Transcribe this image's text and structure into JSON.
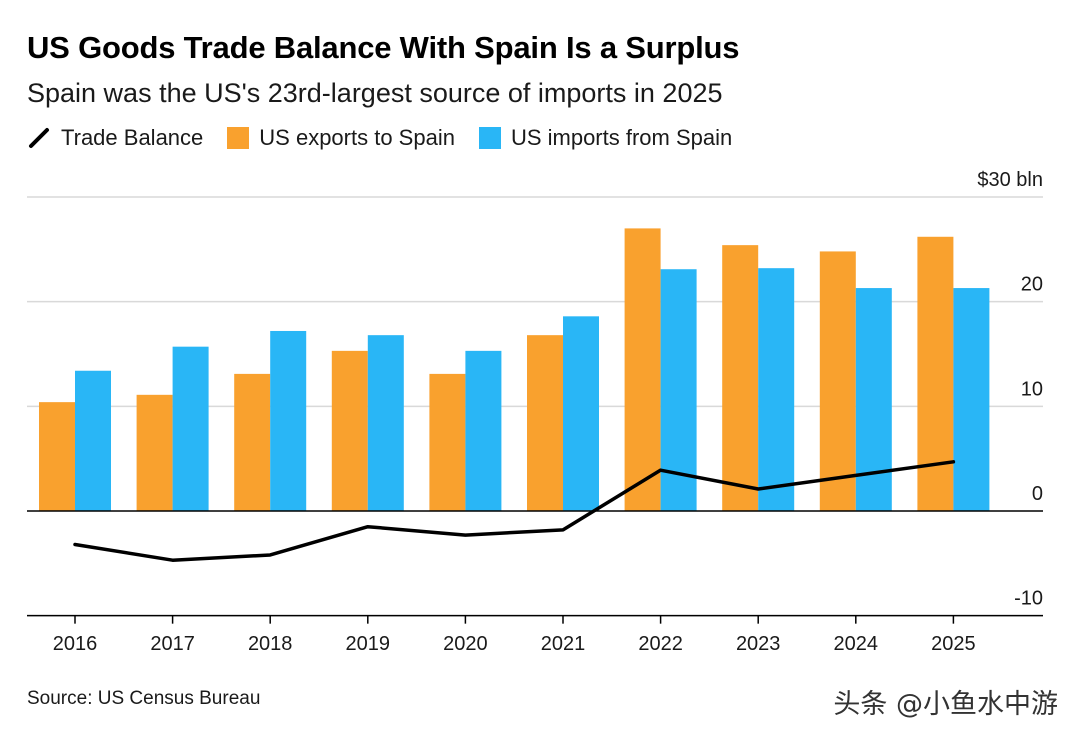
{
  "header": {
    "title": "US Goods Trade Balance With Spain Is a Surplus",
    "subtitle": "Spain was the US's 23rd-largest source of imports in 2025"
  },
  "legend": {
    "trade_balance": "Trade Balance",
    "exports": "US exports to Spain",
    "imports": "US imports from Spain"
  },
  "footer": {
    "source": "Source: US Census Bureau",
    "watermark": "头条 @小鱼水中游"
  },
  "colors": {
    "exports": "#F9A12E",
    "imports": "#29B6F6",
    "trade_balance": "#000000",
    "grid": "#d9d9d9",
    "zero_line": "#000000"
  },
  "chart_data": {
    "type": "bar",
    "title": "US Goods Trade Balance With Spain Is a Surplus",
    "subtitle": "Spain was the US's 23rd-largest source of imports in 2025",
    "categories": [
      "2016",
      "2017",
      "2018",
      "2019",
      "2020",
      "2021",
      "2022",
      "2023",
      "2024",
      "2025"
    ],
    "series": [
      {
        "name": "US exports to Spain",
        "type": "bar",
        "values": [
          10.4,
          11.1,
          13.1,
          15.3,
          13.1,
          16.8,
          27.0,
          25.4,
          24.8,
          26.2
        ]
      },
      {
        "name": "US imports from Spain",
        "type": "bar",
        "values": [
          13.4,
          15.7,
          17.2,
          16.8,
          15.3,
          18.6,
          23.1,
          23.2,
          21.3,
          21.3
        ]
      },
      {
        "name": "Trade Balance",
        "type": "line",
        "values": [
          -3.2,
          -4.7,
          -4.2,
          -1.5,
          -2.3,
          -1.8,
          3.9,
          2.1,
          3.4,
          4.7
        ]
      }
    ],
    "ylim": [
      -10,
      30
    ],
    "yticks": [
      30,
      20,
      10,
      0,
      -10
    ],
    "ytick_labels": [
      "$30 bln",
      "20",
      "10",
      "0",
      "-10"
    ],
    "xlabel": "",
    "ylabel": "",
    "grid": true,
    "legend_position": "top-left"
  }
}
